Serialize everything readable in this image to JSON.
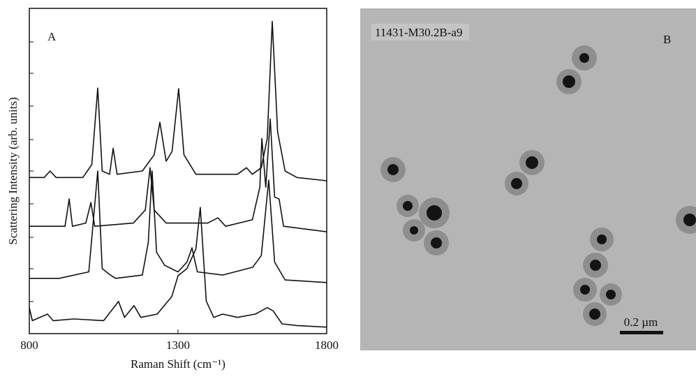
{
  "chart_data": {
    "type": "line",
    "panel_label": "A",
    "x_label": "Raman Shift (cm⁻¹)",
    "y_label": "Scattering Intensity (arb. units)",
    "xlim": [
      800,
      1800
    ],
    "xticks": [
      800,
      1300,
      1800
    ],
    "ylim": [
      0,
      100
    ],
    "series": [
      {
        "color": "#111111",
        "x": [
          800,
          850,
          870,
          890,
          980,
          1010,
          1030,
          1045,
          1070,
          1082,
          1095,
          1180,
          1220,
          1239,
          1260,
          1280,
          1302,
          1320,
          1360,
          1500,
          1530,
          1550,
          1580,
          1600,
          1617,
          1635,
          1660,
          1700,
          1800
        ],
        "values": [
          48,
          48,
          50,
          48,
          48,
          52,
          75.5,
          50,
          49,
          57,
          49,
          50,
          55,
          65,
          53,
          56,
          75.3,
          55,
          49,
          49,
          51,
          49,
          51,
          60,
          96,
          62,
          50,
          48,
          47
        ]
      },
      {
        "color": "#111111",
        "x": [
          800,
          920,
          934,
          945,
          990,
          1007,
          1020,
          1150,
          1190,
          1206,
          1220,
          1260,
          1400,
          1434,
          1460,
          1550,
          1575,
          1582,
          1595,
          1610,
          1625,
          1640,
          1655,
          1800
        ],
        "values": [
          33,
          33,
          41.4,
          33,
          34,
          40.3,
          33,
          34,
          38,
          51,
          38,
          34,
          34,
          35.6,
          33,
          35,
          45,
          60,
          45,
          66,
          42,
          41.4,
          33,
          31.3
        ]
      },
      {
        "color": "#111111",
        "x": [
          800,
          900,
          1000,
          1030,
          1045,
          1070,
          1090,
          1180,
          1200,
          1213,
          1228,
          1255,
          1300,
          1330,
          1347,
          1365,
          1450,
          1551,
          1580,
          1605,
          1625,
          1660,
          1800
        ],
        "values": [
          17,
          17,
          19,
          50,
          20,
          18.2,
          17,
          18,
          28,
          50,
          25,
          21,
          19,
          22,
          26.4,
          19,
          18,
          20.4,
          24,
          47.2,
          22,
          16.5,
          15.7
        ]
      },
      {
        "color": "#111111",
        "x": [
          800,
          810,
          861,
          880,
          950,
          1050,
          1100,
          1120,
          1152,
          1175,
          1230,
          1279,
          1300,
          1330,
          1360,
          1375,
          1395,
          1420,
          1450,
          1500,
          1560,
          1600,
          1620,
          1650,
          1700,
          1800
        ],
        "values": [
          8,
          4,
          6,
          4,
          4.5,
          4,
          9.9,
          5,
          8.6,
          5,
          6,
          11.4,
          17.8,
          20,
          26,
          38.8,
          10,
          5,
          6,
          5,
          6,
          8,
          7,
          3,
          2.5,
          2
        ]
      }
    ]
  },
  "image": {
    "sample_label": "11431-M30.2B-a9",
    "panel_label": "B",
    "scale_bar": "0.2 µm"
  }
}
